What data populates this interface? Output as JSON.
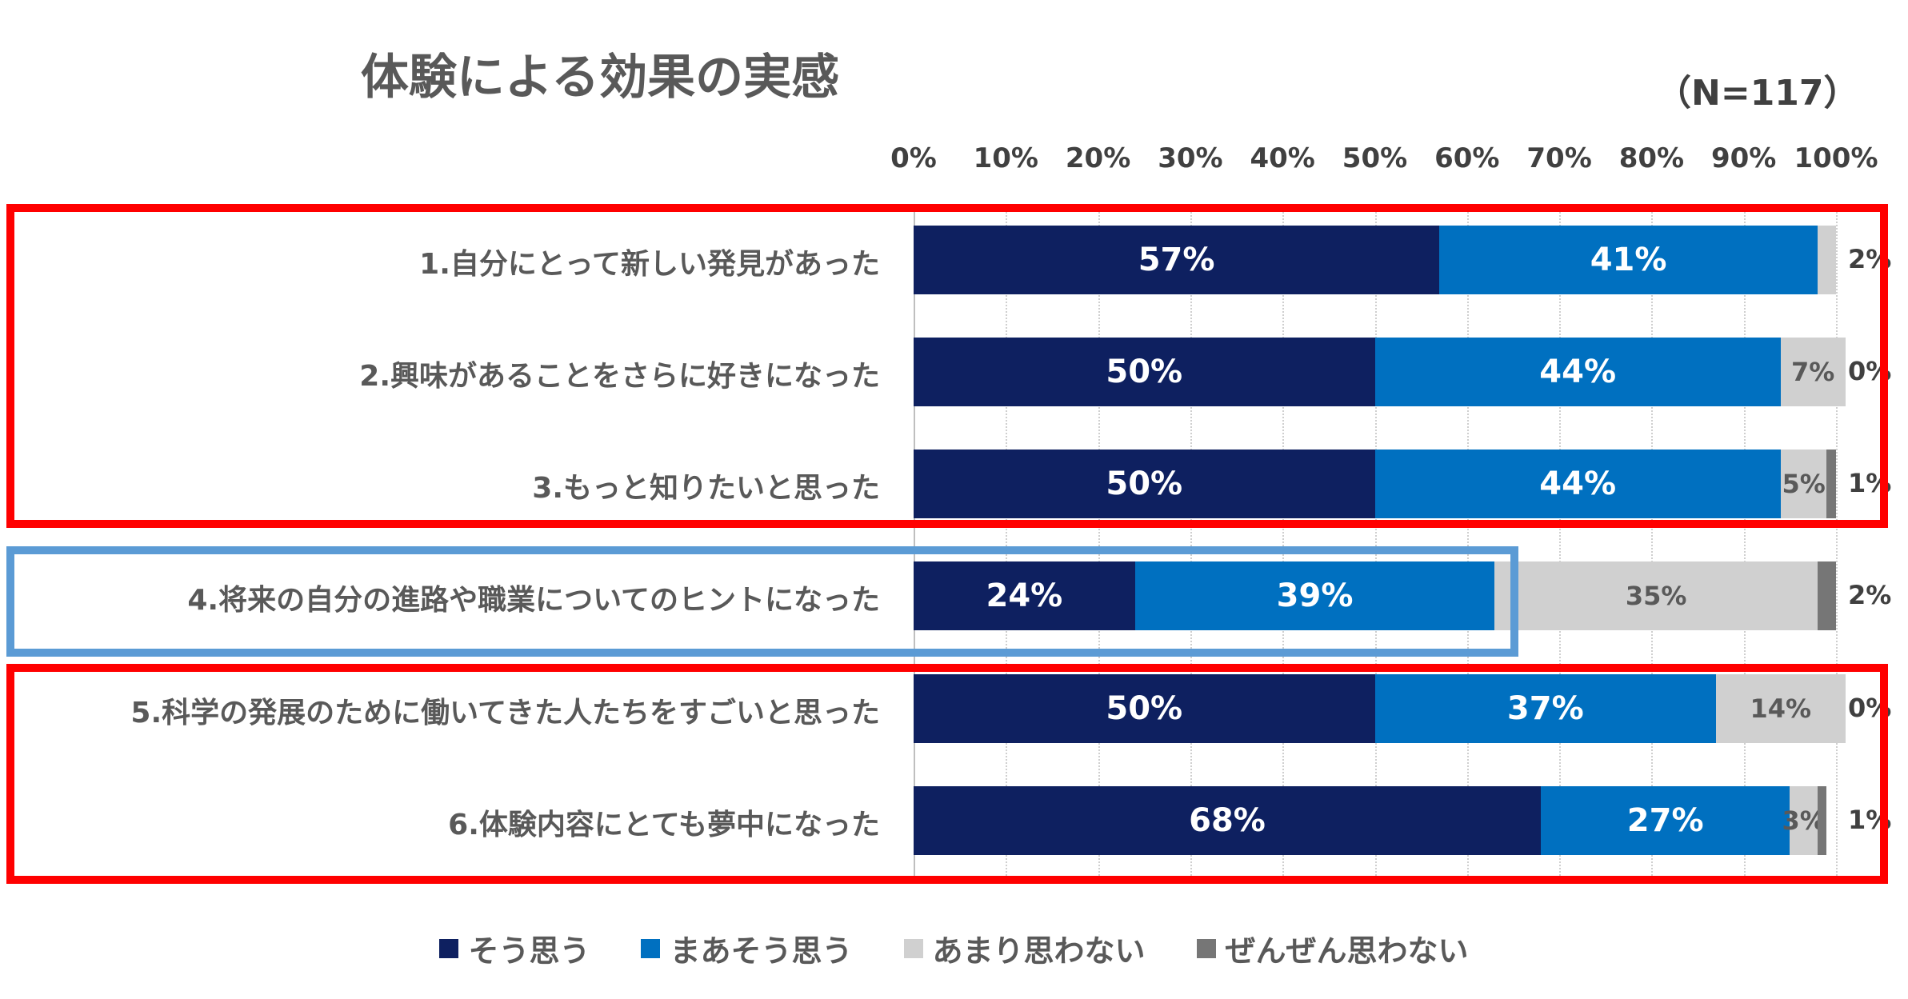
{
  "chart_data": {
    "type": "bar",
    "orientation": "horizontal",
    "stacked": "percent",
    "title": "体験による効果の実感",
    "note": "（N=117）",
    "xlim": [
      0,
      100
    ],
    "x_ticks": [
      "0%",
      "10%",
      "20%",
      "30%",
      "40%",
      "50%",
      "60%",
      "70%",
      "80%",
      "90%",
      "100%"
    ],
    "categories": [
      "1.自分にとって新しい発見があった",
      "2.興味があることをさらに好きになった",
      "3.もっと知りたいと思った",
      "4.将来の自分の進路や職業についてのヒントになった",
      "5.科学の発展のために働いてきた人たちをすごいと思った",
      "6.体験内容にとても夢中になった"
    ],
    "series": [
      {
        "name": "そう思う",
        "color": "#0e2060",
        "values": [
          57,
          50,
          50,
          24,
          50,
          68
        ],
        "labels": [
          "57%",
          "50%",
          "50%",
          "24%",
          "50%",
          "68%"
        ]
      },
      {
        "name": "まあそう思う",
        "color": "#0070c0",
        "values": [
          41,
          44,
          44,
          39,
          37,
          27
        ],
        "labels": [
          "41%",
          "44%",
          "44%",
          "39%",
          "37%",
          "27%"
        ]
      },
      {
        "name": "あまり思わない",
        "color": "#d0d0d0",
        "values": [
          2,
          7,
          5,
          35,
          14,
          3
        ],
        "labels": [
          "",
          "7%",
          "5%",
          "35%",
          "14%",
          "3%"
        ]
      },
      {
        "name": "ぜんぜん思わない",
        "color": "#767676",
        "values": [
          0,
          0,
          1,
          2,
          0,
          1
        ],
        "labels": [
          "",
          "",
          "",
          "",
          "",
          ""
        ]
      }
    ],
    "outside_labels": [
      "2%",
      "0%",
      "1%",
      "2%",
      "0%",
      "1%"
    ],
    "highlight_boxes": [
      {
        "rows": [
          0,
          1,
          2
        ],
        "color": "#ff0000"
      },
      {
        "rows": [
          3
        ],
        "color": "#5b9bd5"
      },
      {
        "rows": [
          4,
          5
        ],
        "color": "#ff0000"
      }
    ],
    "legend_position": "bottom"
  }
}
